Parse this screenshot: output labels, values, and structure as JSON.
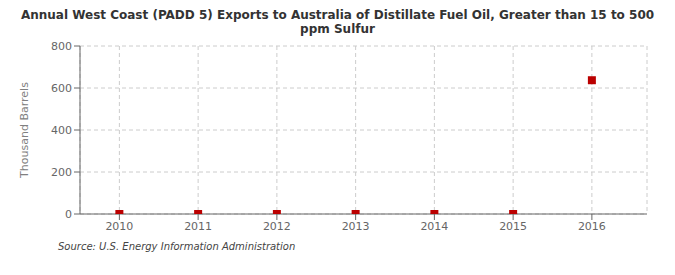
{
  "chart_data": {
    "type": "scatter",
    "title": "Annual West Coast (PADD 5) Exports to Australia of Distillate Fuel Oil, Greater than 15 to 500\nppm Sulfur",
    "ylabel": "Thousand Barrels",
    "source": "Source: U.S. Energy Information Administration",
    "x": [
      2010,
      2011,
      2012,
      2013,
      2014,
      2015,
      2016
    ],
    "values": [
      0,
      0,
      0,
      0,
      0,
      0,
      637
    ],
    "xlim": [
      2009.5,
      2016.7
    ],
    "xticks": [
      2010,
      2011,
      2012,
      2013,
      2014,
      2015,
      2016
    ],
    "ylim": [
      0,
      800
    ],
    "yticks": [
      0,
      200,
      400,
      600,
      800
    ],
    "color": "#bb0000",
    "marker": "square",
    "grid": true
  }
}
